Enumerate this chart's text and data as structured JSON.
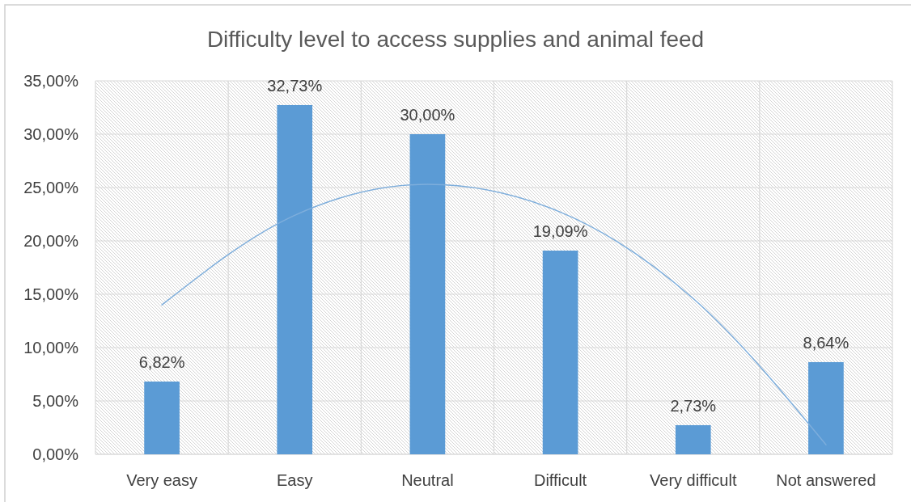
{
  "chart_data": {
    "type": "bar",
    "title": "Difficulty level to access supplies and animal feed",
    "categories": [
      "Very easy",
      "Easy",
      "Neutral",
      "Difficult",
      "Very difficult",
      "Not answered"
    ],
    "series": [
      {
        "color": "#5b9bd5",
        "values": [
          6.82,
          32.73,
          30,
          19.09,
          2.73,
          8.64
        ],
        "value_labels": [
          "6,82%",
          "32,73%",
          "30,00%",
          "19,09%",
          "2,73%",
          "8,64%"
        ]
      },
      {
        "type": "line",
        "color": "#7eaedc",
        "values": [
          14.0,
          22.4,
          25.3,
          22.7,
          14.6,
          0.9
        ]
      }
    ],
    "ylim": [
      0,
      35
    ],
    "yticks": [
      {
        "value": 0,
        "label": "0,00%"
      },
      {
        "value": 5,
        "label": "5,00%"
      },
      {
        "value": 10,
        "label": "10,00%"
      },
      {
        "value": 15,
        "label": "15,00%"
      },
      {
        "value": 20,
        "label": "20,00%"
      },
      {
        "value": 25,
        "label": "25,00%"
      },
      {
        "value": 30,
        "label": "30,00%"
      },
      {
        "value": 35,
        "label": "35,00%"
      }
    ],
    "grid": true
  }
}
